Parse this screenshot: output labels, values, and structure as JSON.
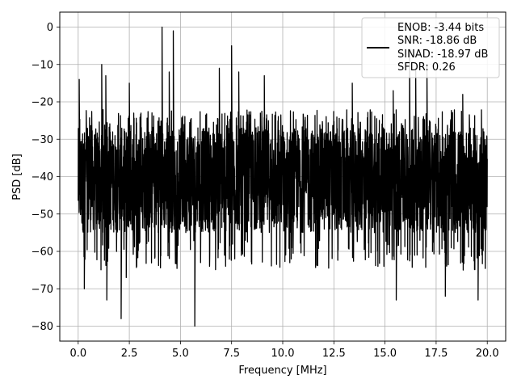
{
  "chart_data": {
    "type": "line",
    "title": "",
    "xlabel": "Frequency [MHz]",
    "ylabel": "PSD [dB]",
    "xlim": [
      -0.9,
      20.9
    ],
    "ylim": [
      -84,
      4
    ],
    "xticks": [
      0.0,
      2.5,
      5.0,
      7.5,
      10.0,
      12.5,
      15.0,
      17.5,
      20.0
    ],
    "xtick_labels": [
      "0.0",
      "2.5",
      "5.0",
      "7.5",
      "10.0",
      "12.5",
      "15.0",
      "17.5",
      "20.0"
    ],
    "yticks": [
      0,
      -10,
      -20,
      -30,
      -40,
      -50,
      -60,
      -70,
      -80
    ],
    "ytick_labels": [
      "0",
      "−10",
      "−20",
      "−30",
      "−40",
      "−50",
      "−60",
      "−70",
      "−80"
    ],
    "grid": true,
    "legend_position": "top-right",
    "legend_lines": [
      "ENOB: -3.44 bits",
      "SNR: -18.86 dB",
      "SINAD: -18.97 dB",
      "SFDR: 0.26"
    ],
    "series": [
      {
        "color": "#000000",
        "description": "dense noise-like PSD trace, mostly between -55 and -25 dB, with spurs",
        "band_low": -55,
        "band_high": -27,
        "spurs": [
          {
            "x": 0.05,
            "y": -14
          },
          {
            "x": 1.15,
            "y": -10
          },
          {
            "x": 1.35,
            "y": -13
          },
          {
            "x": 2.5,
            "y": -15
          },
          {
            "x": 4.1,
            "y": 0
          },
          {
            "x": 4.45,
            "y": -12
          },
          {
            "x": 4.65,
            "y": -1
          },
          {
            "x": 6.9,
            "y": -11
          },
          {
            "x": 7.5,
            "y": -5
          },
          {
            "x": 7.85,
            "y": -12
          },
          {
            "x": 9.1,
            "y": -13
          },
          {
            "x": 13.4,
            "y": -15
          },
          {
            "x": 15.4,
            "y": -17
          },
          {
            "x": 16.2,
            "y": -6
          },
          {
            "x": 16.5,
            "y": -11
          },
          {
            "x": 17.05,
            "y": -10
          },
          {
            "x": 18.8,
            "y": -18
          }
        ],
        "dips": [
          {
            "x": 0.3,
            "y": -70
          },
          {
            "x": 1.4,
            "y": -73
          },
          {
            "x": 2.1,
            "y": -78
          },
          {
            "x": 2.35,
            "y": -67
          },
          {
            "x": 5.7,
            "y": -80
          },
          {
            "x": 15.55,
            "y": -73
          },
          {
            "x": 17.95,
            "y": -72
          },
          {
            "x": 19.55,
            "y": -73
          }
        ]
      }
    ]
  }
}
